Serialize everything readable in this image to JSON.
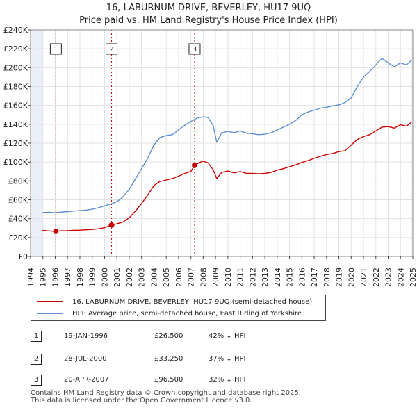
{
  "title_line1": "16, LABURNUM DRIVE, BEVERLEY, HU17 9UQ",
  "title_line2": "Price paid vs. HM Land Registry's House Price Index (HPI)",
  "chart_data": {
    "type": "line",
    "title": "16, LABURNUM DRIVE, BEVERLEY, HU17 9UQ — Price paid vs. HM Land Registry's House Price Index (HPI)",
    "xlabel": "",
    "ylabel": "",
    "xlim": [
      1994,
      2025
    ],
    "ylim": [
      0,
      240000
    ],
    "y_ticks": [
      0,
      20000,
      40000,
      60000,
      80000,
      100000,
      120000,
      140000,
      160000,
      180000,
      200000,
      220000,
      240000
    ],
    "y_tick_labels": [
      "£0",
      "£20K",
      "£40K",
      "£60K",
      "£80K",
      "£100K",
      "£120K",
      "£140K",
      "£160K",
      "£180K",
      "£200K",
      "£220K",
      "£240K"
    ],
    "x_ticks": [
      1994,
      1995,
      1996,
      1997,
      1998,
      1999,
      2000,
      2001,
      2002,
      2003,
      2004,
      2005,
      2006,
      2007,
      2008,
      2009,
      2010,
      2011,
      2012,
      2013,
      2014,
      2015,
      2016,
      2017,
      2018,
      2019,
      2020,
      2021,
      2022,
      2023,
      2024,
      2025
    ],
    "x_tick_labels": [
      "1994",
      "1995",
      "1996",
      "1997",
      "1998",
      "1999",
      "2000",
      "2001",
      "2002",
      "2003",
      "2004",
      "2005",
      "2006",
      "2007",
      "2008",
      "2009",
      "2010",
      "2011",
      "2012",
      "2013",
      "2014",
      "2015",
      "2016",
      "2017",
      "2018",
      "2019",
      "2020",
      "2021",
      "2022",
      "2023",
      "2024",
      "2025"
    ],
    "grid": true,
    "colors": {
      "property": "#cc0000",
      "hpi": "#5b8fd0",
      "marker_line": "#cc0000",
      "shade": "#dde6f3"
    },
    "series": [
      {
        "name": "16, LABURNUM DRIVE, BEVERLEY, HU17 9UQ (semi-detached house)",
        "color": "#cc0000",
        "x": [
          1995.0,
          1995.5,
          1996.05,
          1996.5,
          1997.0,
          1997.5,
          1998.0,
          1998.5,
          1999.0,
          1999.5,
          2000.0,
          2000.57,
          2001.0,
          2001.5,
          2002.0,
          2002.5,
          2003.0,
          2003.5,
          2004.0,
          2004.5,
          2005.0,
          2005.5,
          2006.0,
          2006.5,
          2007.0,
          2007.3,
          2007.7,
          2008.0,
          2008.4,
          2008.8,
          2009.1,
          2009.5,
          2010.0,
          2010.5,
          2011.0,
          2011.5,
          2012.0,
          2012.5,
          2013.0,
          2013.5,
          2014.0,
          2014.5,
          2015.0,
          2015.5,
          2016.0,
          2016.5,
          2017.0,
          2017.5,
          2018.0,
          2018.5,
          2019.0,
          2019.5,
          2020.0,
          2020.5,
          2021.0,
          2021.5,
          2022.0,
          2022.5,
          2023.0,
          2023.5,
          2024.0,
          2024.5,
          2024.9
        ],
        "values": [
          27500,
          27000,
          26500,
          27200,
          27300,
          27600,
          27800,
          28200,
          28600,
          29200,
          30500,
          33250,
          34500,
          36500,
          41000,
          48000,
          56000,
          65000,
          75000,
          79500,
          81000,
          82500,
          85000,
          88000,
          90000,
          96500,
          99500,
          101000,
          99000,
          92000,
          82500,
          89000,
          90500,
          88500,
          90000,
          88000,
          88000,
          87500,
          88000,
          89000,
          91500,
          93000,
          95000,
          97000,
          99500,
          101500,
          104000,
          106000,
          108000,
          109000,
          111000,
          112000,
          118000,
          124000,
          127000,
          129000,
          133000,
          137000,
          137500,
          136000,
          139500,
          138000,
          142500
        ]
      },
      {
        "name": "HPI: Average price, semi-detached house, East Riding of Yorkshire",
        "color": "#5b8fd0",
        "x": [
          1995.0,
          1995.5,
          1996.0,
          1996.5,
          1997.0,
          1997.5,
          1998.0,
          1998.5,
          1999.0,
          1999.5,
          2000.0,
          2000.5,
          2001.0,
          2001.5,
          2002.0,
          2002.5,
          2003.0,
          2003.5,
          2004.0,
          2004.5,
          2005.0,
          2005.5,
          2006.0,
          2006.5,
          2007.0,
          2007.5,
          2008.0,
          2008.4,
          2008.8,
          2009.1,
          2009.5,
          2010.0,
          2010.5,
          2011.0,
          2011.5,
          2012.0,
          2012.5,
          2013.0,
          2013.5,
          2014.0,
          2014.5,
          2015.0,
          2015.5,
          2016.0,
          2016.5,
          2017.0,
          2017.5,
          2018.0,
          2018.5,
          2019.0,
          2019.5,
          2020.0,
          2020.5,
          2021.0,
          2021.5,
          2022.0,
          2022.5,
          2023.0,
          2023.5,
          2024.0,
          2024.5,
          2024.9
        ],
        "values": [
          46500,
          46800,
          46200,
          47000,
          47500,
          48000,
          48500,
          49000,
          50000,
          51500,
          53500,
          55500,
          58000,
          63000,
          71000,
          82000,
          93000,
          104000,
          118000,
          126000,
          128000,
          129000,
          134000,
          139000,
          143000,
          146500,
          148000,
          147000,
          139000,
          121000,
          131000,
          132500,
          131000,
          133000,
          130500,
          130000,
          129000,
          129500,
          131000,
          134000,
          137000,
          140000,
          144000,
          150000,
          153000,
          155000,
          157000,
          158000,
          159500,
          160500,
          163000,
          168000,
          180000,
          190000,
          196000,
          203000,
          210000,
          205000,
          201000,
          205000,
          203000,
          208000
        ]
      }
    ],
    "transactions": [
      {
        "id": "1",
        "x": 1996.05,
        "value": 26500
      },
      {
        "id": "2",
        "x": 2000.57,
        "value": 33250
      },
      {
        "id": "3",
        "x": 2007.3,
        "value": 96500
      }
    ],
    "legend_position": "bottom"
  },
  "legend": {
    "property_label": "16, LABURNUM DRIVE, BEVERLEY, HU17 9UQ (semi-detached house)",
    "hpi_label": "HPI: Average price, semi-detached house, East Riding of Yorkshire"
  },
  "table": [
    {
      "num": "1",
      "date": "19-JAN-1996",
      "price": "£26,500",
      "hpi": "42% ↓ HPI"
    },
    {
      "num": "2",
      "date": "28-JUL-2000",
      "price": "£33,250",
      "hpi": "37% ↓ HPI"
    },
    {
      "num": "3",
      "date": "20-APR-2007",
      "price": "£96,500",
      "hpi": "32% ↓ HPI"
    }
  ],
  "footer": {
    "line1": "Contains HM Land Registry data © Crown copyright and database right 2025.",
    "line2": "This data is licensed under the Open Government Licence v3.0."
  }
}
